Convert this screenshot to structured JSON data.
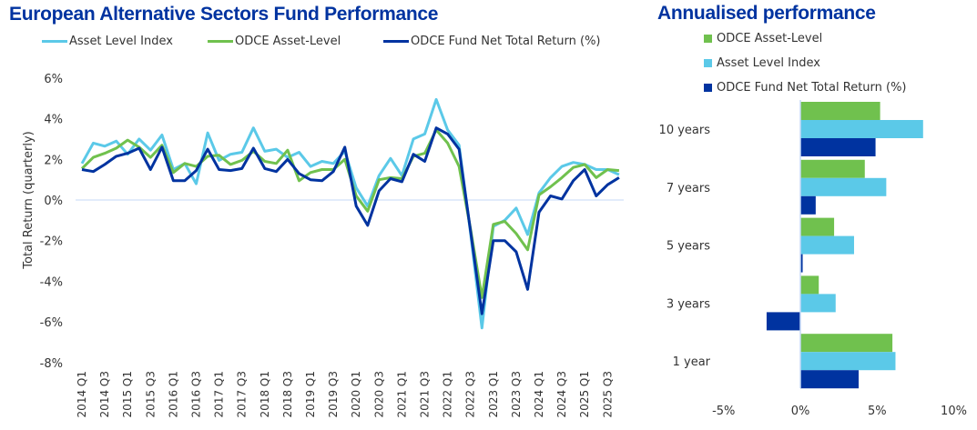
{
  "chart_data": [
    {
      "type": "line",
      "title": "European Alternative Sectors Fund Performance",
      "xlabel": "",
      "ylabel": "Total Return (quarterly)",
      "ylim": [
        -8,
        6
      ],
      "yticks": [
        6,
        4,
        2,
        0,
        -2,
        -4,
        -6,
        -8
      ],
      "ytick_labels": [
        "6%",
        "4%",
        "2%",
        "0%",
        "-2%",
        "-4%",
        "-6%",
        "-8%"
      ],
      "x": [
        "2014 Q1",
        "2014 Q2",
        "2014 Q3",
        "2014 Q4",
        "2015 Q1",
        "2015 Q2",
        "2015 Q3",
        "2015 Q4",
        "2016 Q1",
        "2016 Q2",
        "2016 Q3",
        "2016 Q4",
        "2017 Q1",
        "2017 Q2",
        "2017 Q3",
        "2017 Q4",
        "2018 Q1",
        "2018 Q2",
        "2018 Q3",
        "2018 Q4",
        "2019 Q1",
        "2019 Q2",
        "2019 Q3",
        "2019 Q4",
        "2020 Q1",
        "2020 Q2",
        "2020 Q3",
        "2020 Q4",
        "2021 Q1",
        "2021 Q2",
        "2021 Q3",
        "2021 Q4",
        "2022 Q1",
        "2022 Q2",
        "2022 Q3",
        "2022 Q4",
        "2023 Q1",
        "2023 Q2",
        "2023 Q3",
        "2023 Q4",
        "2024 Q1",
        "2024 Q2",
        "2024 Q3",
        "2024 Q4",
        "2025 Q1",
        "2025 Q2",
        "2025 Q3",
        "2025 Q4"
      ],
      "xtick_labels": [
        "2014 Q1",
        "2014 Q3",
        "2015 Q1",
        "2015 Q3",
        "2016 Q1",
        "2016 Q3",
        "2017 Q1",
        "2017 Q3",
        "2018 Q1",
        "2018 Q3",
        "2019 Q1",
        "2019 Q3",
        "2020 Q1",
        "2020 Q3",
        "2021 Q1",
        "2021 Q3",
        "2022 Q1",
        "2022 Q3",
        "2023 Q1",
        "2023 Q3",
        "2024 Q1",
        "2024 Q3",
        "2025 Q1",
        "2025 Q3"
      ],
      "grid": false,
      "zero_line": true,
      "legend_position": "top",
      "series": [
        {
          "name": "Asset Level Index",
          "color": "#5bc9e8",
          "values": [
            1.8,
            2.8,
            2.65,
            2.9,
            2.25,
            3.0,
            2.45,
            3.2,
            1.5,
            1.8,
            0.8,
            3.3,
            1.95,
            2.25,
            2.35,
            3.55,
            2.4,
            2.5,
            2.1,
            2.35,
            1.65,
            1.9,
            1.8,
            2.4,
            0.6,
            -0.3,
            1.2,
            2.05,
            1.2,
            3.0,
            3.25,
            4.95,
            3.45,
            2.7,
            -1.6,
            -6.3,
            -1.3,
            -1.0,
            -0.4,
            -1.7,
            0.35,
            1.1,
            1.65,
            1.85,
            1.75,
            1.5,
            1.5,
            1.25
          ]
        },
        {
          "name": "ODCE Asset-Level",
          "color": "#70c14e",
          "values": [
            1.55,
            2.1,
            2.3,
            2.55,
            2.95,
            2.6,
            2.1,
            2.7,
            1.35,
            1.8,
            1.65,
            2.15,
            2.2,
            1.75,
            1.95,
            2.4,
            1.9,
            1.8,
            2.45,
            0.95,
            1.35,
            1.5,
            1.5,
            2.0,
            0.2,
            -0.55,
            1.0,
            1.1,
            1.05,
            2.15,
            2.3,
            3.45,
            2.8,
            1.65,
            -1.4,
            -4.8,
            -1.2,
            -1.05,
            -1.65,
            -2.45,
            0.25,
            0.65,
            1.1,
            1.6,
            1.75,
            1.1,
            1.5,
            1.45
          ]
        },
        {
          "name": "ODCE Fund Net Total Return (%)",
          "color": "#0033a0",
          "values": [
            1.5,
            1.4,
            1.75,
            2.15,
            2.3,
            2.55,
            1.5,
            2.6,
            0.95,
            0.95,
            1.45,
            2.5,
            1.5,
            1.45,
            1.55,
            2.55,
            1.55,
            1.4,
            2.0,
            1.3,
            1.0,
            0.95,
            1.4,
            2.6,
            -0.3,
            -1.25,
            0.45,
            1.05,
            0.9,
            2.25,
            1.9,
            3.55,
            3.25,
            2.5,
            -1.5,
            -5.6,
            -2.0,
            -2.0,
            -2.55,
            -4.4,
            -0.6,
            0.2,
            0.05,
            0.95,
            1.5,
            0.2,
            0.75,
            1.1
          ]
        }
      ]
    },
    {
      "type": "bar",
      "orientation": "horizontal",
      "title": "Annualised performance",
      "categories": [
        "10 years",
        "7 years",
        "5 years",
        "3 years",
        "1 year"
      ],
      "xlim": [
        -5,
        10
      ],
      "xticks": [
        -5,
        0,
        5,
        10
      ],
      "xtick_labels": [
        "-5%",
        "0%",
        "5%",
        "10%"
      ],
      "legend_position": "top",
      "series": [
        {
          "name": "ODCE Asset-Level",
          "color": "#70c14e",
          "values": [
            5.2,
            4.2,
            2.2,
            1.2,
            6.0
          ]
        },
        {
          "name": "Asset Level Index",
          "color": "#5bc9e8",
          "values": [
            8.0,
            5.6,
            3.5,
            2.3,
            6.2
          ]
        },
        {
          "name": "ODCE Fund Net Total Return (%)",
          "color": "#0033a0",
          "values": [
            4.9,
            1.0,
            0.15,
            -2.2,
            3.8
          ]
        }
      ]
    }
  ],
  "line_chart": {
    "title": "European Alternative Sectors Fund Performance",
    "ylabel": "Total Return (quarterly)",
    "legend": [
      {
        "label": "Asset Level Index",
        "color": "#5bc9e8"
      },
      {
        "label": "ODCE Asset-Level",
        "color": "#70c14e"
      },
      {
        "label": "ODCE Fund Net Total Return (%)",
        "color": "#0033a0"
      }
    ]
  },
  "bar_chart": {
    "title": "Annualised performance",
    "legend": [
      {
        "label": "ODCE Asset-Level",
        "color": "#70c14e"
      },
      {
        "label": "Asset Level Index",
        "color": "#5bc9e8"
      },
      {
        "label": "ODCE Fund Net Total Return (%)",
        "color": "#0033a0"
      }
    ]
  }
}
